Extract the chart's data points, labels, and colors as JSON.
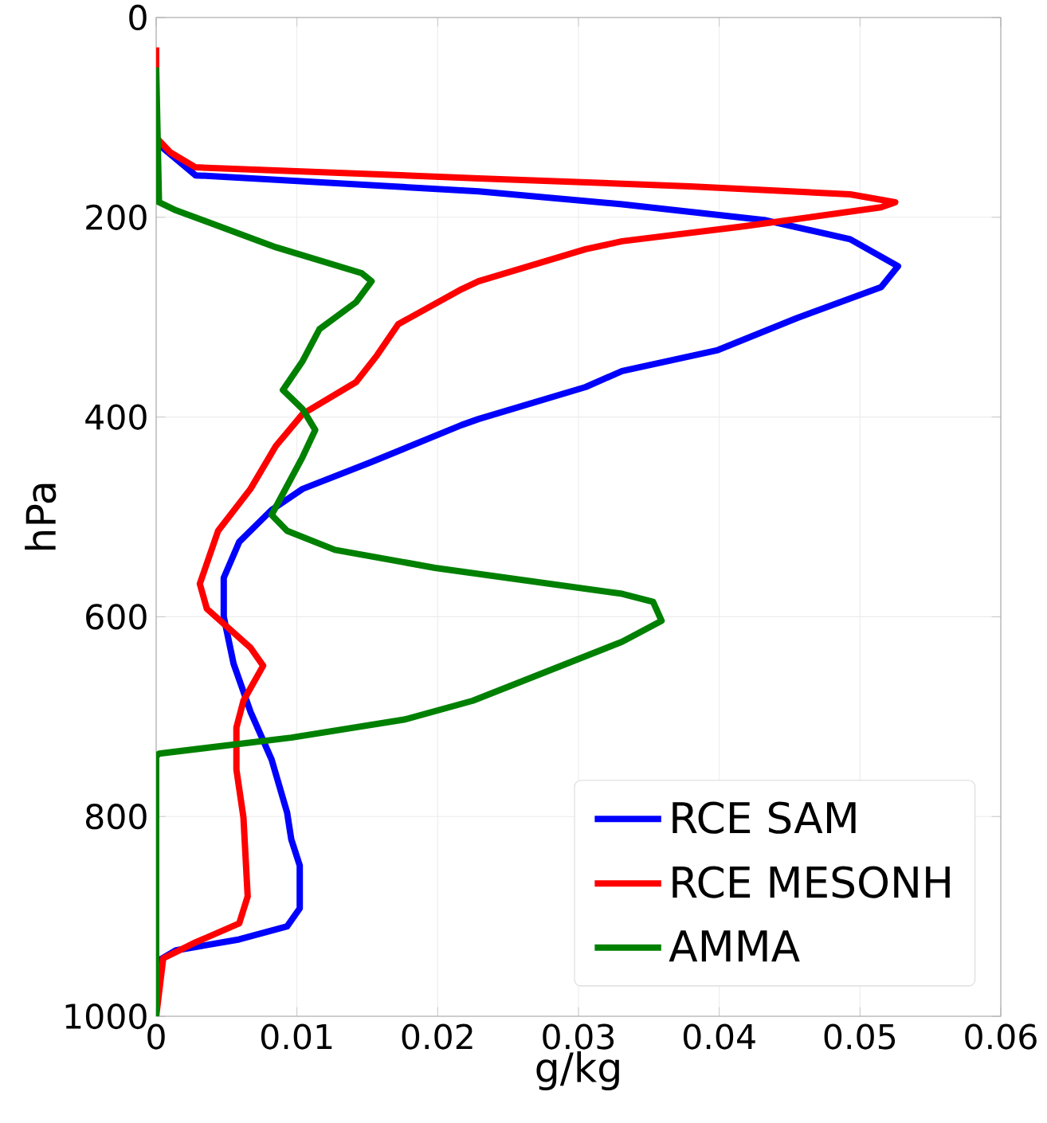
{
  "chart_data": {
    "type": "line",
    "xlabel": "g/kg",
    "ylabel": "hPa",
    "xlim": [
      0,
      0.06
    ],
    "ylim": [
      1000,
      0
    ],
    "xticks": [
      0,
      0.01,
      0.02,
      0.03,
      0.04,
      0.05,
      0.06
    ],
    "yticks": [
      0,
      200,
      400,
      600,
      800,
      1000
    ],
    "grid": true,
    "legend": "bottom right",
    "line_style": "solid",
    "marker": "none",
    "series": [
      {
        "name": "RCE SAM",
        "color": "#0000ff",
        "x": [
          0,
          0.0028,
          0.0229,
          0.0331,
          0.0433,
          0.0493,
          0.0527,
          0.0515,
          0.0455,
          0.0399,
          0.0331,
          0.0305,
          0.0229,
          0.0217,
          0.0153,
          0.0104,
          0.0082,
          0.0059,
          0.0048,
          0.0048,
          0.0055,
          0.0067,
          0.0082,
          0.0093,
          0.0096,
          0.0102,
          0.0102,
          0.0093,
          0.0059,
          0.0014,
          0.0002,
          0
        ],
        "values": [
          125,
          158,
          174,
          187,
          203,
          222,
          249,
          270,
          301,
          333,
          354,
          370,
          402,
          408,
          445,
          472,
          493,
          525,
          561,
          600,
          647,
          695,
          743,
          796,
          823,
          849,
          892,
          910,
          923,
          934,
          944,
          950
        ]
      },
      {
        "name": "RCE MESONH",
        "color": "#ff0000",
        "x": [
          0,
          0,
          0.001,
          0.0028,
          0.0229,
          0.0379,
          0.0493,
          0.0525,
          0.0515,
          0.0418,
          0.0331,
          0.0305,
          0.0229,
          0.0217,
          0.0172,
          0.0157,
          0.0142,
          0.0104,
          0.0085,
          0.0067,
          0.0044,
          0.0031,
          0.0036,
          0.0067,
          0.0076,
          0.0062,
          0.0057,
          0.0057,
          0.0062,
          0.0065,
          0.0059,
          0.0028,
          0.0005,
          0
        ],
        "values": [
          30,
          120,
          135,
          150,
          161,
          169,
          177,
          185,
          190,
          209,
          224,
          232,
          264,
          272,
          307,
          338,
          365,
          397,
          429,
          472,
          514,
          567,
          592,
          631,
          649,
          684,
          711,
          753,
          801,
          880,
          907,
          926,
          942,
          1000
        ]
      },
      {
        "name": "AMMA",
        "color": "#008000",
        "x": [
          0,
          0.0002,
          0.0014,
          0.0085,
          0.0146,
          0.0153,
          0.0142,
          0.0116,
          0.0104,
          0.009,
          0.0104,
          0.0113,
          0.0104,
          0.0082,
          0.0093,
          0.0127,
          0.0198,
          0.0331,
          0.0353,
          0.0359,
          0.0331,
          0.0225,
          0.0176,
          0.0096,
          0.0002,
          0,
          0
        ],
        "values": [
          50,
          185,
          193,
          230,
          256,
          264,
          285,
          312,
          344,
          373,
          392,
          413,
          440,
          498,
          514,
          533,
          551,
          577,
          585,
          604,
          625,
          684,
          703,
          721,
          737,
          740,
          1000
        ]
      }
    ]
  }
}
